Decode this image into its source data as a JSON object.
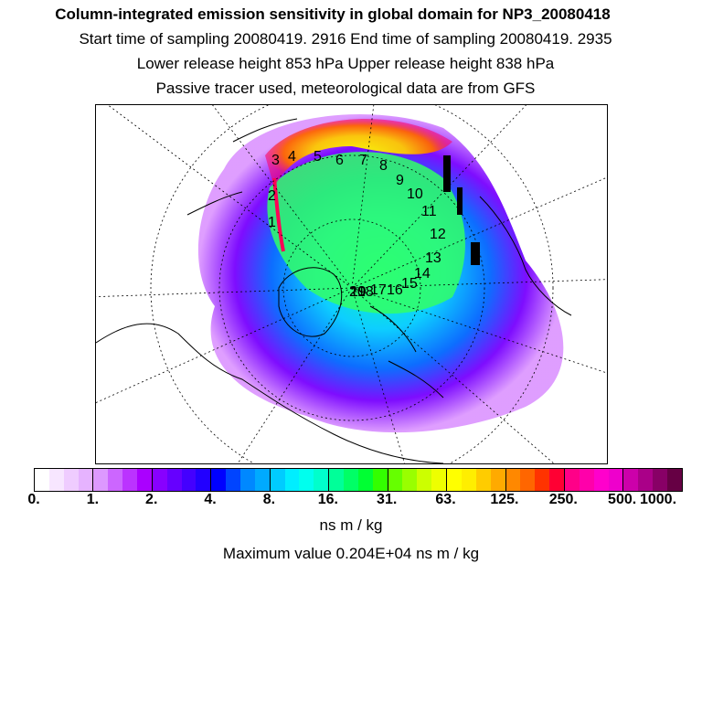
{
  "titles": {
    "line1": "Column-integrated emission sensitivity in global domain for NP3_20080418",
    "line2": "Start time of sampling 20080419.  2916     End time of sampling 20080419.  2935",
    "line3": "Lower release height  853 hPa        Upper release height  838 hPa",
    "line4": "Passive tracer used, meteorological data are from GFS"
  },
  "colorbar": {
    "colors": [
      "#ffffff",
      "#f7e6ff",
      "#efccff",
      "#e6b3ff",
      "#dd99ff",
      "#cc66ff",
      "#bb33ff",
      "#aa00ff",
      "#8800ff",
      "#6600ff",
      "#4400ff",
      "#2200ff",
      "#0000ff",
      "#0044ff",
      "#0088ff",
      "#00aaff",
      "#00ccff",
      "#00eeff",
      "#00ffee",
      "#00ffcc",
      "#00ff99",
      "#00ff66",
      "#00ff33",
      "#33ff00",
      "#66ff00",
      "#99ff00",
      "#ccff00",
      "#eeff00",
      "#ffff00",
      "#ffee00",
      "#ffcc00",
      "#ffaa00",
      "#ff8800",
      "#ff6600",
      "#ff3300",
      "#ff0033",
      "#ff0088",
      "#ff00aa",
      "#ff00cc",
      "#ee00cc",
      "#cc00aa",
      "#aa0088",
      "#880066",
      "#660044"
    ],
    "tick_labels": [
      "0.",
      "1.",
      "2.",
      "4.",
      "8.",
      "16.",
      "31.",
      "63.",
      "125.",
      "250.",
      "500.",
      "1000."
    ]
  },
  "units": "ns m / kg",
  "max_value": "Maximum value  0.204E+04 ns m / kg",
  "trajectory_labels": [
    "1",
    "2",
    "3",
    "4",
    "5",
    "6",
    "7",
    "8",
    "9",
    "10",
    "11",
    "12",
    "13",
    "14",
    "15",
    "16",
    "17",
    "18",
    "19",
    "20"
  ]
}
